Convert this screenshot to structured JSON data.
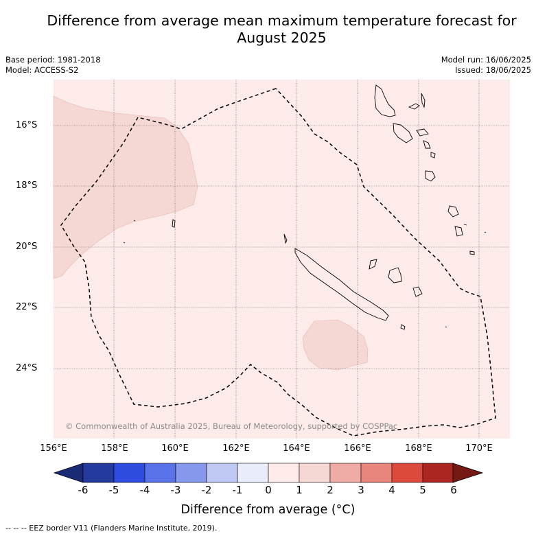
{
  "title_line1": "Difference from average mean maximum temperature forecast for",
  "title_line2": "August 2025",
  "base_period": "Base period: 1981-2018",
  "model": "Model: ACCESS-S2",
  "model_run": "Model run: 16/06/2025",
  "issued": "Issued: 18/06/2025",
  "credit": "© Commonwealth of Australia 2025, Bureau of Meteorology, supported by COSPPac",
  "eez_note": "--  --  -- EEZ border V11 (Flanders Marine Institute, 2019).",
  "lat_ticks": [
    "16°S",
    "18°S",
    "20°S",
    "22°S",
    "24°S"
  ],
  "lon_ticks": [
    "156°E",
    "158°E",
    "160°E",
    "162°E",
    "164°E",
    "166°E",
    "168°E",
    "170°E"
  ],
  "colorbar": {
    "label": "Difference from average (°C)",
    "ticks": [
      "-6",
      "-5",
      "-4",
      "-3",
      "-2",
      "-1",
      "0",
      "1",
      "2",
      "3",
      "4",
      "5",
      "6"
    ],
    "colors": [
      "#243a9c",
      "#2e4de0",
      "#5a72e8",
      "#8598ec",
      "#c0c8f5",
      "#e8ecfb",
      "#fcebe8",
      "#f5d8d4",
      "#efaba5",
      "#e8857c",
      "#dc4a3d",
      "#ad2520"
    ],
    "under_color": "#1b2a74",
    "over_color": "#761814"
  },
  "map_colors": {
    "background_anomaly": "#fcebe8",
    "patch_anomaly": "#f5d8d4"
  }
}
